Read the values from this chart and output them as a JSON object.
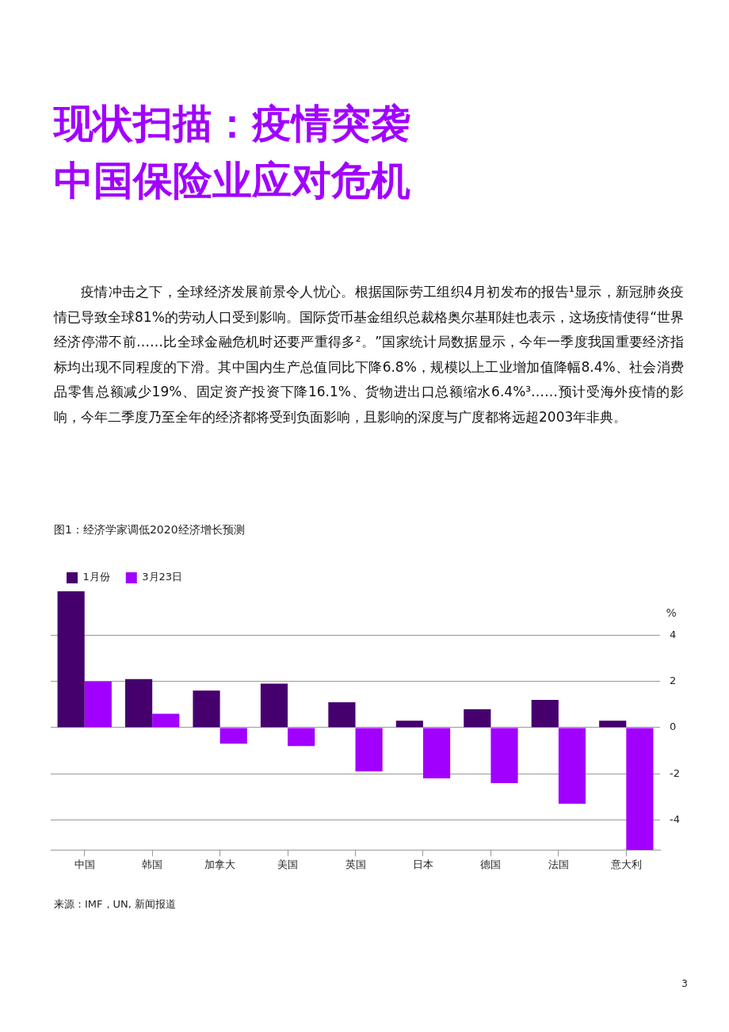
{
  "chart_data": {
    "type": "bar",
    "title": "现状扫描：疫情突袭中国保险业应对危机",
    "subtitle": "疫情冲击之下，全球经济发展前景令人忧心。根据国际劳工组织4月初发布的报告¹显示，新冠肺炎疫情已导致全球81%的劳动人口受到影响。国际货币基金组织总裁格奥尔基耶娃也表示，这场疫情使得“世界经济停滞不前……比全球金融危机时还要严重得多²。”国家统计局数据显示，今年一季度我国重要经济指标均出现不同程度的下滑。其中国内生产总值同比下降6.8%，规模以上工业增加值降幅8.4%、社会消费品零售总额减少19%、固定资产投资下降16.1%、货物进出口总额缩水6.4%³……预计受海外疫情的影响，今年二季度乃至全年的经济都将受到负面影响，且影响的深度与广度都将远超2003年非典。",
    "annotations": [
      "图1：经济学家调低2020经济增长预测",
      "来源：IMF，UN, 新闻报道",
      "3"
    ],
    "ylabel": "%",
    "categories": [
      "中国",
      "韩国",
      "加拿大",
      "美国",
      "英国",
      "日本",
      "德国",
      "法国",
      "意大利"
    ],
    "series": [
      {
        "name": "1月份",
        "color": "#45006e",
        "values": [
          5.9,
          2.1,
          1.6,
          1.9,
          1.1,
          0.3,
          0.8,
          1.2,
          0.3
        ]
      },
      {
        "name": "3月23日",
        "color": "#a100ff",
        "values": [
          2.0,
          0.6,
          -0.7,
          -0.8,
          -1.9,
          -2.2,
          -2.4,
          -3.3,
          -5.3
        ]
      }
    ],
    "ylim": [
      -5.3,
      5.9
    ],
    "yticks": [
      -4,
      -2,
      0,
      2,
      4
    ],
    "grid": "y",
    "legend": "top left"
  }
}
